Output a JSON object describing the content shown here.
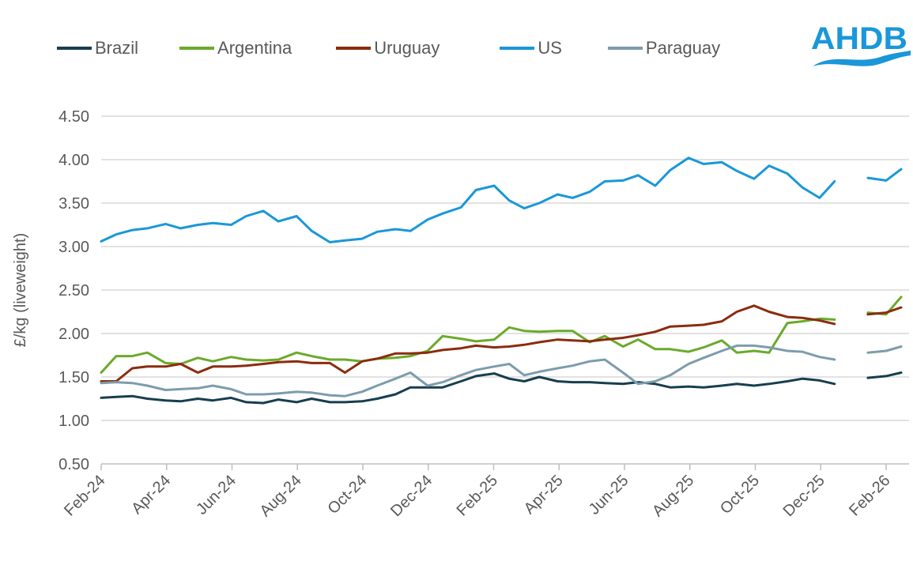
{
  "chart_data": {
    "type": "line",
    "title": "",
    "xlabel": "",
    "ylabel": "£/kg (liveweight)",
    "ylim": [
      0.5,
      4.5
    ],
    "yticks": [
      "0.50",
      "1.00",
      "1.50",
      "2.00",
      "2.50",
      "3.00",
      "3.50",
      "4.00",
      "4.50"
    ],
    "xticks": [
      "Feb-24",
      "Apr-24",
      "Jun-24",
      "Aug-24",
      "Oct-24",
      "Dec-24",
      "Feb-25",
      "Apr-25",
      "Jun-25",
      "Aug-25",
      "Oct-25",
      "Dec-25",
      "Feb-26"
    ],
    "grid": "horizontal",
    "legend": "top",
    "x": [
      "2024-02-01",
      "2024-02-15",
      "2024-03-01",
      "2024-03-15",
      "2024-04-01",
      "2024-04-15",
      "2024-05-01",
      "2024-05-15",
      "2024-06-01",
      "2024-06-15",
      "2024-07-01",
      "2024-07-15",
      "2024-08-01",
      "2024-08-15",
      "2024-09-01",
      "2024-09-15",
      "2024-10-01",
      "2024-10-15",
      "2024-11-01",
      "2024-11-15",
      "2024-12-01",
      "2024-12-15",
      "2025-01-01",
      "2025-01-15",
      "2025-02-01",
      "2025-02-15",
      "2025-03-01",
      "2025-03-15",
      "2025-04-01",
      "2025-04-15",
      "2025-05-01",
      "2025-05-15",
      "2025-06-01",
      "2025-06-15",
      "2025-07-01",
      "2025-07-15",
      "2025-08-01",
      "2025-08-15",
      "2025-09-01",
      "2025-09-15",
      "2025-10-01",
      "2025-10-15",
      "2025-11-01",
      "2025-11-15",
      "2025-12-01",
      "2025-12-15",
      "2026-01-01",
      "2026-01-15",
      "2026-02-01",
      "2026-02-15"
    ],
    "series": [
      {
        "name": "Brazil",
        "color": "#173e4f",
        "values": [
          1.26,
          1.27,
          1.28,
          1.25,
          1.23,
          1.22,
          1.25,
          1.23,
          1.26,
          1.21,
          1.2,
          1.24,
          1.21,
          1.25,
          1.21,
          1.21,
          1.22,
          1.25,
          1.3,
          1.38,
          1.38,
          1.38,
          1.45,
          1.51,
          1.54,
          1.48,
          1.45,
          1.5,
          1.45,
          1.44,
          1.44,
          1.43,
          1.42,
          1.44,
          1.42,
          1.38,
          1.39,
          1.38,
          1.4,
          1.42,
          1.4,
          1.42,
          1.45,
          1.48,
          1.46,
          1.42,
          null,
          1.49,
          1.51,
          1.55
        ]
      },
      {
        "name": "Argentina",
        "color": "#6aaa2a",
        "values": [
          1.55,
          1.74,
          1.74,
          1.78,
          1.66,
          1.65,
          1.72,
          1.68,
          1.73,
          1.7,
          1.69,
          1.7,
          1.78,
          1.74,
          1.7,
          1.7,
          1.68,
          1.71,
          1.72,
          1.74,
          1.8,
          1.97,
          1.94,
          1.91,
          1.93,
          2.07,
          2.03,
          2.02,
          2.03,
          2.03,
          1.9,
          1.97,
          1.85,
          1.93,
          1.82,
          1.82,
          1.79,
          1.84,
          1.92,
          1.78,
          1.8,
          1.78,
          2.12,
          2.14,
          2.17,
          2.16,
          null,
          2.24,
          2.22,
          2.42
        ]
      },
      {
        "name": "Uruguay",
        "color": "#8b2c0f",
        "values": [
          1.45,
          1.45,
          1.6,
          1.62,
          1.62,
          1.65,
          1.55,
          1.62,
          1.62,
          1.63,
          1.65,
          1.67,
          1.68,
          1.66,
          1.66,
          1.55,
          1.68,
          1.71,
          1.77,
          1.77,
          1.78,
          1.81,
          1.83,
          1.86,
          1.84,
          1.85,
          1.87,
          1.9,
          1.93,
          1.92,
          1.91,
          1.93,
          1.95,
          1.98,
          2.02,
          2.08,
          2.09,
          2.1,
          2.14,
          2.25,
          2.32,
          2.25,
          2.19,
          2.18,
          2.15,
          2.11,
          null,
          2.22,
          2.24,
          2.3
        ]
      },
      {
        "name": "US",
        "color": "#1a97d9",
        "values": [
          3.06,
          3.14,
          3.19,
          3.21,
          3.26,
          3.21,
          3.25,
          3.27,
          3.25,
          3.35,
          3.41,
          3.29,
          3.35,
          3.18,
          3.05,
          3.07,
          3.09,
          3.17,
          3.2,
          3.18,
          3.31,
          3.38,
          3.45,
          3.65,
          3.7,
          3.53,
          3.44,
          3.5,
          3.6,
          3.56,
          3.63,
          3.75,
          3.76,
          3.82,
          3.7,
          3.88,
          4.02,
          3.95,
          3.97,
          3.87,
          3.78,
          3.93,
          3.84,
          3.68,
          3.56,
          3.75,
          null,
          3.79,
          3.76,
          3.89
        ]
      },
      {
        "name": "Paraguay",
        "color": "#7d9cad",
        "values": [
          1.43,
          1.44,
          1.43,
          1.4,
          1.35,
          1.36,
          1.37,
          1.4,
          1.36,
          1.3,
          1.3,
          1.31,
          1.33,
          1.32,
          1.29,
          1.28,
          1.33,
          1.4,
          1.48,
          1.55,
          1.4,
          1.44,
          1.52,
          1.58,
          1.62,
          1.65,
          1.52,
          1.56,
          1.6,
          1.63,
          1.68,
          1.7,
          1.55,
          1.42,
          1.45,
          1.52,
          1.65,
          1.72,
          1.8,
          1.86,
          1.86,
          1.84,
          1.8,
          1.79,
          1.73,
          1.7,
          null,
          1.78,
          1.8,
          1.85
        ]
      }
    ]
  },
  "logo": {
    "text": "AHDB",
    "color": "#1a97d9"
  }
}
